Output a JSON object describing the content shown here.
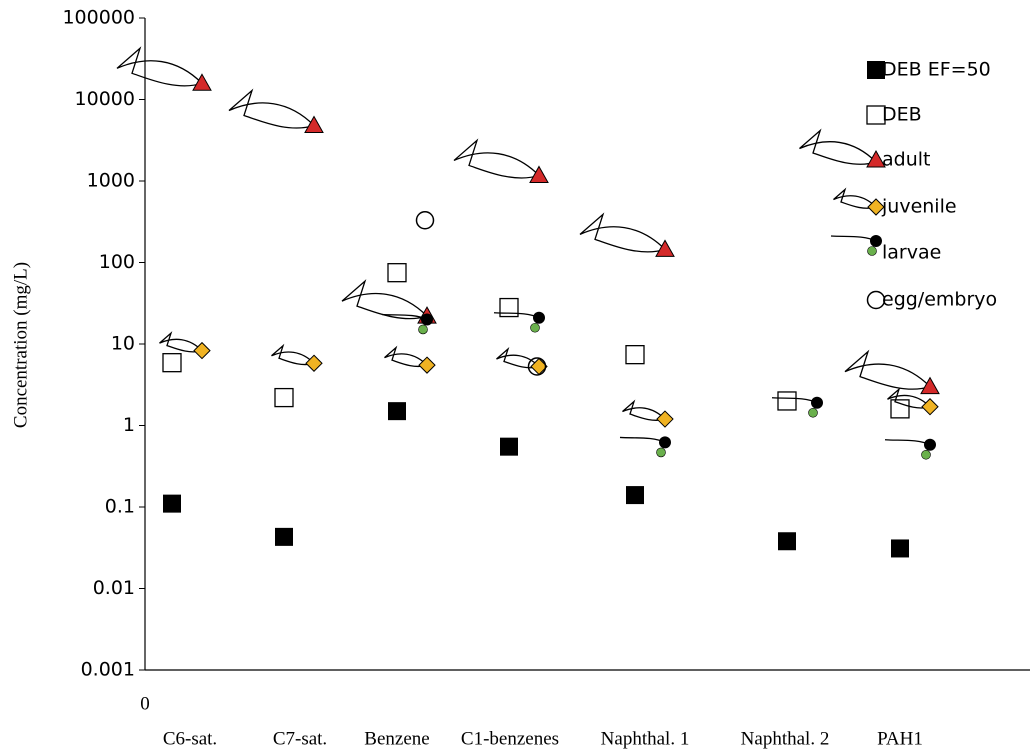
{
  "chart_data": {
    "type": "scatter",
    "y_label": "Concentration (mg/L)",
    "categories": [
      "C6-sat.",
      "C7-sat.",
      "Benzene",
      "C1-benzenes",
      "Naphthal. 1",
      "Naphthal. 2",
      "PAH1"
    ],
    "xticks": [
      0
    ],
    "log_scale": true,
    "ylim": [
      0.001,
      100000
    ],
    "yticks": [
      100000,
      10000,
      1000,
      100,
      10,
      1,
      0.1,
      0.01,
      0.001
    ],
    "legend": "upper right",
    "series": [
      {
        "name": "DEB EF=50",
        "marker": "square",
        "color": "#000000",
        "filled": true,
        "values": [
          0.11,
          0.043,
          1.5,
          0.55,
          0.14,
          0.038,
          0.031
        ]
      },
      {
        "name": "DEB",
        "marker": "square",
        "color": "#000000",
        "filled": false,
        "values": [
          5.9,
          2.2,
          75,
          28,
          7.4,
          2.0,
          1.6
        ]
      },
      {
        "name": "adult",
        "marker": "triangle",
        "color": "#d42a2a",
        "filled": true,
        "values": [
          15800,
          4800,
          22,
          1170,
          145,
          null,
          3.0
        ]
      },
      {
        "name": "juvenile",
        "marker": "diamond",
        "color": "#f0b323",
        "filled": true,
        "values": [
          8.3,
          5.8,
          5.5,
          5.3,
          1.2,
          null,
          1.7
        ]
      },
      {
        "name": "larvae",
        "marker": "circle",
        "color": "#000000",
        "filled": true,
        "values": [
          null,
          null,
          20,
          21,
          0.62,
          1.9,
          0.58
        ]
      },
      {
        "name": "egg/embryo",
        "marker": "circle",
        "color": "#000000",
        "filled": false,
        "values": [
          null,
          null,
          330,
          5.3,
          null,
          null,
          null
        ]
      }
    ]
  }
}
